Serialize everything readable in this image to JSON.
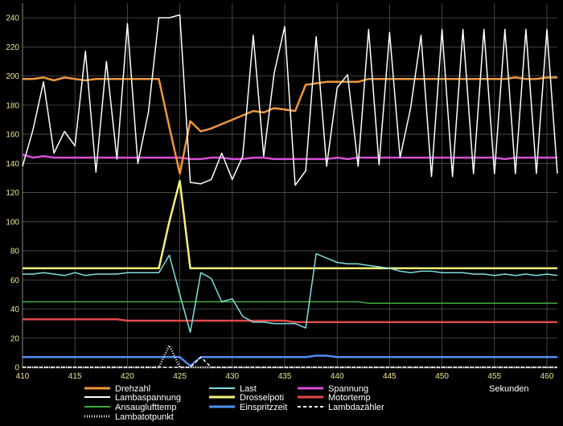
{
  "chart_data": {
    "type": "line",
    "xlabel": "Sekunden",
    "ylabel": "",
    "xlim": [
      410,
      461
    ],
    "ylim": [
      0,
      250
    ],
    "x_ticks": [
      410,
      415,
      420,
      425,
      430,
      435,
      440,
      445,
      450,
      455,
      460
    ],
    "y_ticks": [
      0,
      20,
      40,
      60,
      80,
      100,
      120,
      140,
      160,
      180,
      200,
      220,
      240
    ],
    "grid": true,
    "legend_position": "bottom",
    "x": [
      410,
      411,
      412,
      413,
      414,
      415,
      416,
      417,
      418,
      419,
      420,
      421,
      422,
      423,
      424,
      425,
      426,
      427,
      428,
      429,
      430,
      431,
      432,
      433,
      434,
      435,
      436,
      437,
      438,
      439,
      440,
      441,
      442,
      443,
      444,
      445,
      446,
      447,
      448,
      449,
      450,
      451,
      452,
      453,
      454,
      455,
      456,
      457,
      458,
      459,
      460,
      461
    ],
    "series": [
      {
        "name": "Drehzahl",
        "color": "#f0963c",
        "width": 2.5,
        "dash": "",
        "values": [
          198,
          198,
          199,
          197,
          199,
          198,
          197,
          198,
          198,
          198,
          198,
          198,
          198,
          198,
          165,
          133,
          169,
          162,
          164,
          167,
          170,
          173,
          176,
          175,
          178,
          177,
          176,
          194,
          195,
          196,
          196,
          196,
          196,
          198,
          198,
          198,
          198,
          198,
          198,
          198,
          198,
          198,
          198,
          198,
          198,
          198,
          198,
          199,
          198,
          198,
          199,
          199
        ]
      },
      {
        "name": "Last",
        "color": "#7fe0e0",
        "width": 1.5,
        "dash": "",
        "values": [
          64,
          64,
          65,
          64,
          63,
          65,
          63,
          64,
          64,
          64,
          65,
          65,
          65,
          65,
          77,
          50,
          24,
          65,
          61,
          45,
          47,
          35,
          31,
          31,
          30,
          30,
          30,
          27,
          78,
          75,
          72,
          71,
          71,
          70,
          69,
          68,
          66,
          65,
          66,
          66,
          65,
          65,
          65,
          64,
          64,
          63,
          64,
          63,
          64,
          63,
          64,
          63
        ]
      },
      {
        "name": "Spannung",
        "color": "#d84ed8",
        "width": 2.5,
        "dash": "",
        "values": [
          146,
          144,
          145,
          144,
          144,
          144,
          144,
          144,
          144,
          144,
          144,
          144,
          144,
          144,
          144,
          144,
          143,
          143,
          144,
          144,
          143,
          143,
          144,
          144,
          143,
          143,
          143,
          143,
          143,
          143,
          144,
          143,
          144,
          144,
          144,
          144,
          144,
          144,
          144,
          144,
          144,
          144,
          144,
          144,
          144,
          144,
          143,
          144,
          144,
          144,
          144,
          144
        ]
      },
      {
        "name": "Lambaspannung",
        "color": "#ffffff",
        "width": 1.5,
        "dash": "",
        "values": [
          138,
          163,
          196,
          147,
          162,
          152,
          217,
          134,
          210,
          143,
          236,
          140,
          175,
          240,
          240,
          242,
          127,
          126,
          129,
          147,
          129,
          145,
          228,
          145,
          202,
          234,
          125,
          135,
          227,
          138,
          192,
          201,
          138,
          232,
          139,
          230,
          144,
          178,
          228,
          131,
          232,
          131,
          232,
          133,
          232,
          133,
          232,
          133,
          232,
          133,
          232,
          133
        ]
      },
      {
        "name": "Drosselpoti",
        "color": "#f5f07a",
        "width": 2.5,
        "dash": "",
        "values": [
          68,
          68,
          68,
          68,
          68,
          68,
          68,
          68,
          68,
          68,
          68,
          68,
          68,
          68,
          100,
          128,
          68,
          68,
          68,
          68,
          68,
          68,
          68,
          68,
          68,
          68,
          68,
          68,
          68,
          68,
          68,
          68,
          68,
          68,
          68,
          68,
          68,
          68,
          68,
          68,
          68,
          68,
          68,
          68,
          68,
          68,
          68,
          68,
          68,
          68,
          68,
          68
        ]
      },
      {
        "name": "Motortemp",
        "color": "#e04848",
        "width": 2.5,
        "dash": "",
        "values": [
          33,
          33,
          33,
          33,
          33,
          33,
          33,
          33,
          33,
          33,
          32,
          32,
          32,
          32,
          32,
          32,
          32,
          32,
          32,
          32,
          32,
          32,
          32,
          32,
          32,
          32,
          31,
          31,
          31,
          31,
          31,
          31,
          31,
          31,
          31,
          31,
          31,
          31,
          31,
          31,
          31,
          31,
          31,
          31,
          31,
          31,
          31,
          31,
          31,
          31,
          31,
          31
        ]
      },
      {
        "name": "Ansauglufttemp",
        "color": "#3fae3f",
        "width": 1.5,
        "dash": "",
        "values": [
          45,
          45,
          45,
          45,
          45,
          45,
          45,
          45,
          45,
          45,
          45,
          45,
          45,
          45,
          45,
          45,
          45,
          45,
          45,
          45,
          45,
          45,
          45,
          45,
          45,
          45,
          45,
          45,
          45,
          45,
          45,
          45,
          45,
          44,
          44,
          44,
          44,
          44,
          44,
          44,
          44,
          44,
          44,
          44,
          44,
          44,
          44,
          44,
          44,
          44,
          44,
          44
        ]
      },
      {
        "name": "Einspritzzeit",
        "color": "#4f8ff0",
        "width": 2.5,
        "dash": "",
        "values": [
          7,
          7,
          7,
          7,
          7,
          7,
          7,
          7,
          7,
          7,
          7,
          7,
          7,
          7,
          7,
          7,
          1,
          7,
          7,
          7,
          7,
          7,
          7,
          7,
          7,
          7,
          7,
          7,
          8,
          8,
          7,
          7,
          7,
          7,
          7,
          7,
          7,
          7,
          7,
          7,
          7,
          7,
          7,
          7,
          7,
          7,
          7,
          7,
          7,
          7,
          7,
          7
        ]
      },
      {
        "name": "Lambdazähler",
        "color": "#ffffff",
        "width": 1.5,
        "dash": "4,3",
        "values": [
          0,
          0,
          0,
          0,
          0,
          0,
          0,
          0,
          0,
          0,
          0,
          0,
          0,
          0,
          0,
          0,
          0,
          7,
          0,
          0,
          0,
          0,
          0,
          0,
          0,
          0,
          0,
          0,
          0,
          0,
          0,
          0,
          0,
          0,
          0,
          0,
          0,
          0,
          0,
          0,
          0,
          0,
          0,
          0,
          0,
          0,
          0,
          0,
          0,
          0,
          0,
          0
        ]
      },
      {
        "name": "Lambatotpunkt",
        "color": "#ffffff",
        "width": 2.5,
        "dash": "1,2",
        "values": [
          0,
          0,
          0,
          0,
          0,
          0,
          0,
          0,
          0,
          0,
          0,
          0,
          0,
          0,
          15,
          0,
          0,
          0,
          0,
          0,
          0,
          0,
          0,
          0,
          0,
          0,
          0,
          0,
          0,
          0,
          0,
          0,
          0,
          0,
          0,
          0,
          0,
          0,
          0,
          0,
          0,
          0,
          0,
          0,
          0,
          0,
          0,
          0,
          0,
          0,
          0,
          0
        ]
      }
    ]
  }
}
